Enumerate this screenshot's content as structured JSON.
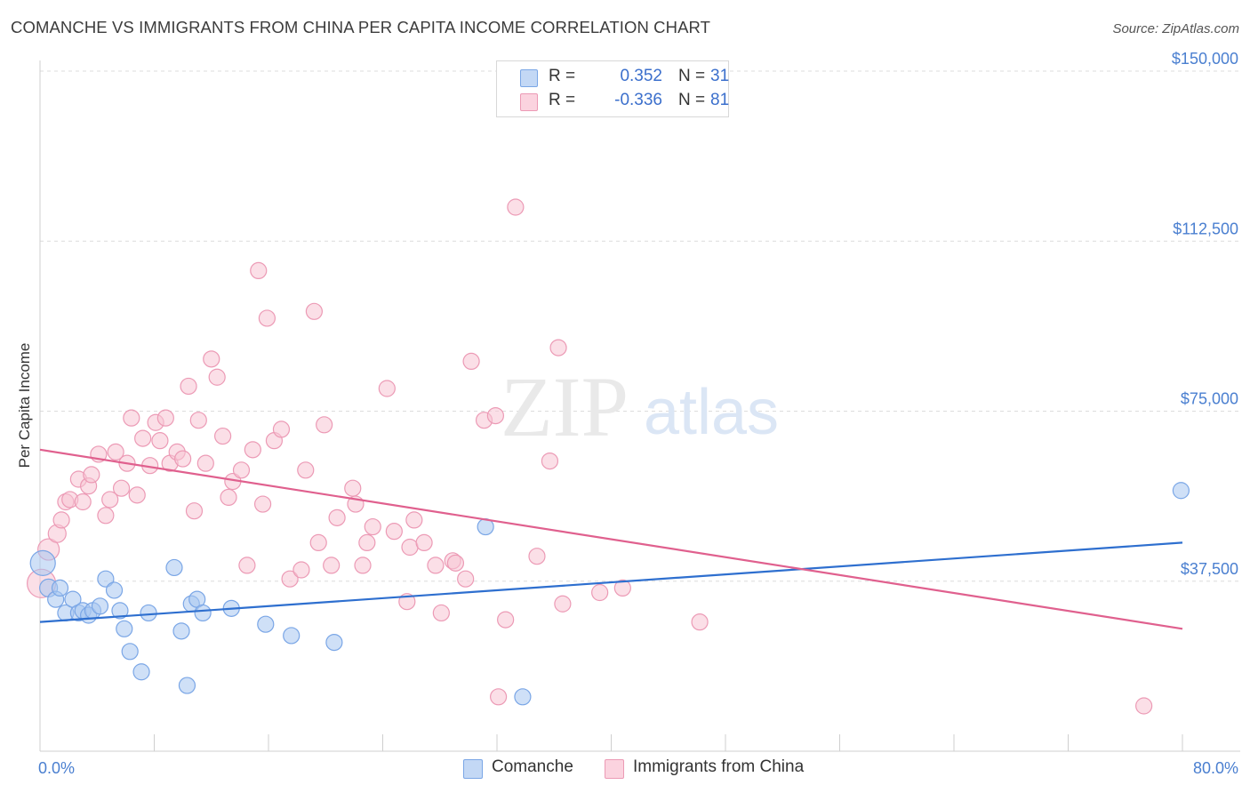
{
  "title": "COMANCHE VS IMMIGRANTS FROM CHINA PER CAPITA INCOME CORRELATION CHART",
  "source": "Source: ZipAtlas.com",
  "watermark": {
    "zip": "ZIP",
    "atlas": "atlas"
  },
  "legend": {
    "rows": [
      {
        "r_label": "R =",
        "r_value": "0.352",
        "n_label": "N =",
        "n_value": "31",
        "color": "#a8c6f0",
        "border": "#7aa6e6"
      },
      {
        "r_label": "R =",
        "r_value": "-0.336",
        "n_label": "N =",
        "n_value": "81",
        "color": "#f7c4d4",
        "border": "#ec9ab5"
      }
    ]
  },
  "bottom_legend": [
    "Comanche",
    "Immigrants from China"
  ],
  "chart_data": {
    "type": "scatter",
    "title": "COMANCHE VS IMMIGRANTS FROM CHINA PER CAPITA INCOME CORRELATION CHART",
    "xlabel": "",
    "ylabel": "Per Capita Income",
    "xlim": [
      0,
      80
    ],
    "ylim": [
      0,
      150000
    ],
    "x_ticks": [
      "0.0%",
      "80.0%"
    ],
    "y_ticks": [
      {
        "value": 37500,
        "label": "$37,500"
      },
      {
        "value": 75000,
        "label": "$75,000"
      },
      {
        "value": 112500,
        "label": "$112,500"
      },
      {
        "value": 150000,
        "label": "$150,000"
      }
    ],
    "grid": "horizontal-dashed",
    "series": [
      {
        "name": "Comanche",
        "color": "#7aa6e6",
        "fill": "#a8c6f0",
        "line_color": "#2e6fcf",
        "trend": [
          [
            0,
            28500
          ],
          [
            80,
            46000
          ]
        ],
        "points": [
          [
            0.2,
            41500,
            14
          ],
          [
            0.6,
            36000,
            10
          ],
          [
            1.1,
            33500,
            9
          ],
          [
            1.4,
            36000,
            9
          ],
          [
            1.8,
            30500,
            9
          ],
          [
            2.3,
            33500,
            9
          ],
          [
            2.7,
            30500,
            9
          ],
          [
            3.0,
            31000,
            9
          ],
          [
            3.4,
            30000,
            9
          ],
          [
            3.7,
            31000,
            9
          ],
          [
            4.2,
            32000,
            9
          ],
          [
            4.6,
            38000,
            9
          ],
          [
            5.2,
            35500,
            9
          ],
          [
            5.6,
            31000,
            9
          ],
          [
            5.9,
            27000,
            9
          ],
          [
            6.3,
            22000,
            9
          ],
          [
            7.1,
            17500,
            9
          ],
          [
            7.6,
            30500,
            9
          ],
          [
            9.4,
            40500,
            9
          ],
          [
            9.9,
            26500,
            9
          ],
          [
            10.3,
            14500,
            9
          ],
          [
            10.6,
            32500,
            9
          ],
          [
            11.0,
            33500,
            9
          ],
          [
            11.4,
            30500,
            9
          ],
          [
            13.4,
            31500,
            9
          ],
          [
            15.8,
            28000,
            9
          ],
          [
            17.6,
            25500,
            9
          ],
          [
            20.6,
            24000,
            9
          ],
          [
            31.2,
            49500,
            9
          ],
          [
            33.8,
            12000,
            9
          ],
          [
            79.9,
            57500,
            9
          ]
        ]
      },
      {
        "name": "Immigrants from China",
        "color": "#ec9ab5",
        "fill": "#f7c4d4",
        "line_color": "#e0608e",
        "trend": [
          [
            0,
            66500
          ],
          [
            80,
            27000
          ]
        ],
        "points": [
          [
            0.1,
            37000,
            16
          ],
          [
            0.6,
            44500,
            12
          ],
          [
            1.2,
            48000,
            10
          ],
          [
            1.5,
            51000,
            9
          ],
          [
            1.8,
            55000,
            9
          ],
          [
            2.1,
            55500,
            9
          ],
          [
            2.7,
            60000,
            9
          ],
          [
            3.0,
            55000,
            9
          ],
          [
            3.4,
            58500,
            9
          ],
          [
            3.6,
            61000,
            9
          ],
          [
            4.1,
            65500,
            9
          ],
          [
            4.6,
            52000,
            9
          ],
          [
            4.9,
            55500,
            9
          ],
          [
            5.3,
            66000,
            9
          ],
          [
            5.7,
            58000,
            9
          ],
          [
            6.1,
            63500,
            9
          ],
          [
            6.4,
            73500,
            9
          ],
          [
            6.8,
            56500,
            9
          ],
          [
            7.2,
            69000,
            9
          ],
          [
            7.7,
            63000,
            9
          ],
          [
            8.1,
            72500,
            9
          ],
          [
            8.4,
            68500,
            9
          ],
          [
            8.8,
            73500,
            9
          ],
          [
            9.1,
            63500,
            9
          ],
          [
            9.6,
            66000,
            9
          ],
          [
            10.0,
            64500,
            9
          ],
          [
            10.4,
            80500,
            9
          ],
          [
            10.8,
            53000,
            9
          ],
          [
            11.1,
            73000,
            9
          ],
          [
            11.6,
            63500,
            9
          ],
          [
            12.0,
            86500,
            9
          ],
          [
            12.4,
            82500,
            9
          ],
          [
            12.8,
            69500,
            9
          ],
          [
            13.2,
            56000,
            9
          ],
          [
            13.5,
            59500,
            9
          ],
          [
            14.1,
            62000,
            9
          ],
          [
            14.5,
            41000,
            9
          ],
          [
            14.9,
            66500,
            9
          ],
          [
            15.3,
            106000,
            9
          ],
          [
            15.6,
            54500,
            9
          ],
          [
            15.9,
            95500,
            9
          ],
          [
            16.4,
            68500,
            9
          ],
          [
            16.9,
            71000,
            9
          ],
          [
            17.5,
            38000,
            9
          ],
          [
            18.3,
            40000,
            9
          ],
          [
            18.6,
            62000,
            9
          ],
          [
            19.2,
            97000,
            9
          ],
          [
            19.5,
            46000,
            9
          ],
          [
            19.9,
            72000,
            9
          ],
          [
            20.4,
            41000,
            9
          ],
          [
            20.8,
            51500,
            9
          ],
          [
            21.9,
            58000,
            9
          ],
          [
            22.1,
            54500,
            9
          ],
          [
            22.6,
            41000,
            9
          ],
          [
            22.9,
            46000,
            9
          ],
          [
            23.3,
            49500,
            9
          ],
          [
            24.3,
            80000,
            9
          ],
          [
            24.8,
            48500,
            9
          ],
          [
            25.7,
            33000,
            9
          ],
          [
            25.9,
            45000,
            9
          ],
          [
            26.2,
            51000,
            9
          ],
          [
            26.9,
            46000,
            9
          ],
          [
            27.7,
            41000,
            9
          ],
          [
            28.1,
            30500,
            9
          ],
          [
            28.9,
            42000,
            9
          ],
          [
            29.1,
            41500,
            9
          ],
          [
            29.8,
            38000,
            9
          ],
          [
            30.2,
            86000,
            9
          ],
          [
            31.1,
            73000,
            9
          ],
          [
            31.9,
            74000,
            9
          ],
          [
            32.1,
            12000,
            9
          ],
          [
            32.6,
            29000,
            9
          ],
          [
            33.3,
            120000,
            9
          ],
          [
            34.8,
            43000,
            9
          ],
          [
            35.7,
            64000,
            9
          ],
          [
            36.3,
            89000,
            9
          ],
          [
            36.6,
            32500,
            9
          ],
          [
            39.2,
            35000,
            9
          ],
          [
            40.8,
            36000,
            9
          ],
          [
            46.2,
            28500,
            9
          ],
          [
            77.3,
            10000,
            9
          ]
        ]
      }
    ]
  }
}
